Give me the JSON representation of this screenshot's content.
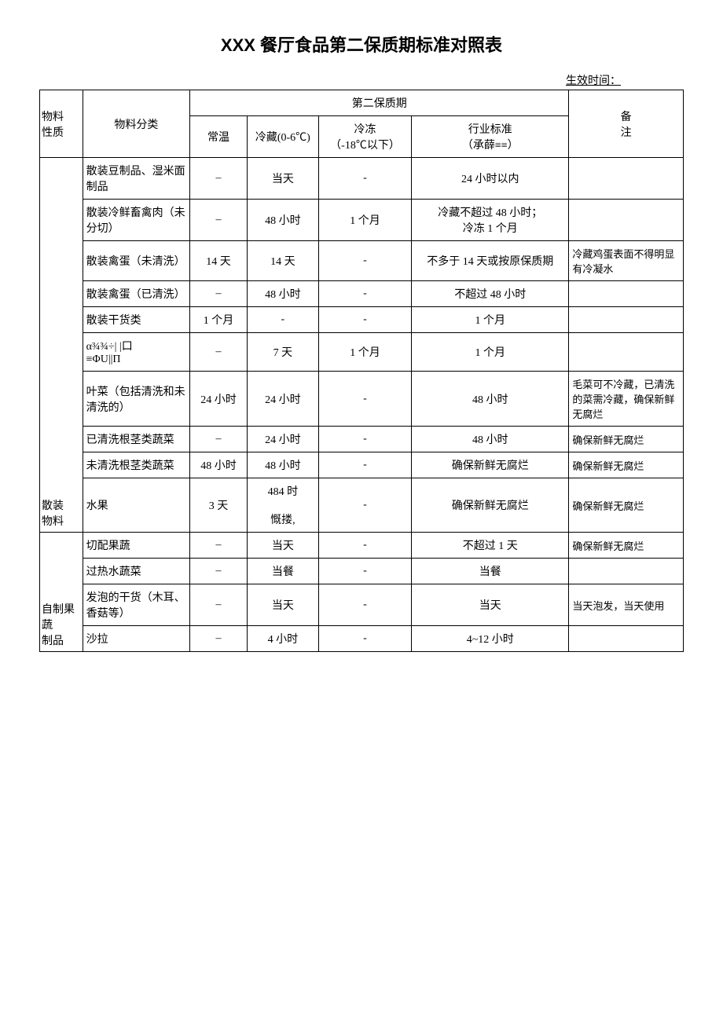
{
  "title": "XXX 餐厅食品第二保质期标准对照表",
  "effective_label": "生效时间：",
  "headers": {
    "material_nature": "物料\n性质",
    "material_category": "物料分类",
    "second_shelf_life": "第二保质期",
    "room_temp": "常温",
    "refrigerated": "冷藏(0-6℃)",
    "frozen": "冷冻\n（-18℃以下）",
    "industry_standard": "行业标准\n（承薛≡≡）",
    "remark": "备\n注"
  },
  "group1": {
    "label": "散装\n物料",
    "rows": [
      {
        "cat": "散装豆制品、湿米面制品",
        "rt": "–",
        "rf": "当天",
        "fz": "-",
        "std": "24 小时以内",
        "rem": ""
      },
      {
        "cat": "散装冷鲜畜禽肉（未分切）",
        "rt": "–",
        "rf": "48 小时",
        "fz": "1 个月",
        "std": "冷藏不超过 48 小时；\n冷冻 1 个月",
        "rem": ""
      },
      {
        "cat": "散装禽蛋（未清洗）",
        "rt": "14 天",
        "rf": "14 天",
        "fz": "-",
        "std": "不多于 14 天或按原保质期",
        "rem": "冷藏鸡蛋表面不得明显有冷凝水"
      },
      {
        "cat": "散装禽蛋（已清洗）",
        "rt": "–",
        "rf": "48 小时",
        "fz": "-",
        "std": "不超过 48 小时",
        "rem": ""
      },
      {
        "cat": "散装干货类",
        "rt": "1 个月",
        "rf": "-",
        "fz": "-",
        "std": "1 个月",
        "rem": ""
      },
      {
        "cat": "α¾¾÷|  |口\n≡ΦU||П",
        "rt": "–",
        "rf": "7 天",
        "fz": "1 个月",
        "std": "1 个月",
        "rem": ""
      },
      {
        "cat": "叶菜（包括清洗和未清洗的）",
        "rt": "24 小时",
        "rf": "24 小时",
        "fz": "-",
        "std": "48 小时",
        "rem": "毛菜可不冷藏，已清洗的菜需冷藏，确保新鲜无腐烂"
      },
      {
        "cat": "已清洗根茎类蔬菜",
        "rt": "–",
        "rf": "24 小时",
        "fz": "-",
        "std": "48 小时",
        "rem": "确保新鲜无腐烂"
      },
      {
        "cat": "未清洗根茎类蔬菜",
        "rt": "48 小时",
        "rf": "48 小时",
        "fz": "-",
        "std": "确保新鲜无腐烂",
        "rem": "确保新鲜无腐烂"
      },
      {
        "cat": "水果",
        "rt": "3 天",
        "rf": "484 时\n\n慨搂,",
        "fz": "-",
        "std": "确保新鲜无腐烂",
        "rem": "确保新鲜无腐烂"
      }
    ]
  },
  "group2": {
    "label": "自制果蔬\n制品",
    "rows": [
      {
        "cat": "切配果蔬",
        "rt": "–",
        "rf": "当天",
        "fz": "-",
        "std": "不超过 1 天",
        "rem": "确保新鲜无腐烂"
      },
      {
        "cat": "过热水蔬菜",
        "rt": "–",
        "rf": "当餐",
        "fz": "-",
        "std": "当餐",
        "rem": ""
      },
      {
        "cat": "发泡的干货（木耳、香菇等）",
        "rt": "–",
        "rf": "当天",
        "fz": "-",
        "std": "当天",
        "rem": "当天泡发，当天使用"
      },
      {
        "cat": "沙拉",
        "rt": "–",
        "rf": "4 小时",
        "fz": "-",
        "std": "4~12 小时",
        "rem": ""
      }
    ]
  },
  "col_widths": {
    "nature": "6%",
    "category": "15%",
    "rt": "8%",
    "rf": "10%",
    "fz": "13%",
    "std": "22%",
    "rem": "16%"
  }
}
